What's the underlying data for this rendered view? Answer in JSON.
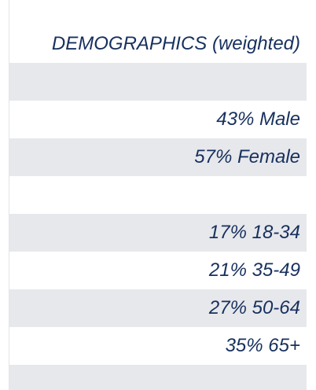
{
  "header": {
    "title": "DEMOGRAPHICS (weighted)"
  },
  "rows": [
    {
      "text": ""
    },
    {
      "text": "43% Male"
    },
    {
      "text": "57% Female"
    },
    {
      "text": ""
    },
    {
      "text": "17% 18-34"
    },
    {
      "text": "21% 35-49"
    },
    {
      "text": "27% 50-64"
    },
    {
      "text": "35% 65+"
    },
    {
      "text": ""
    }
  ],
  "colors": {
    "text": "#17305e",
    "shaded_row": "#e7e8ec",
    "white_row": "#ffffff"
  }
}
